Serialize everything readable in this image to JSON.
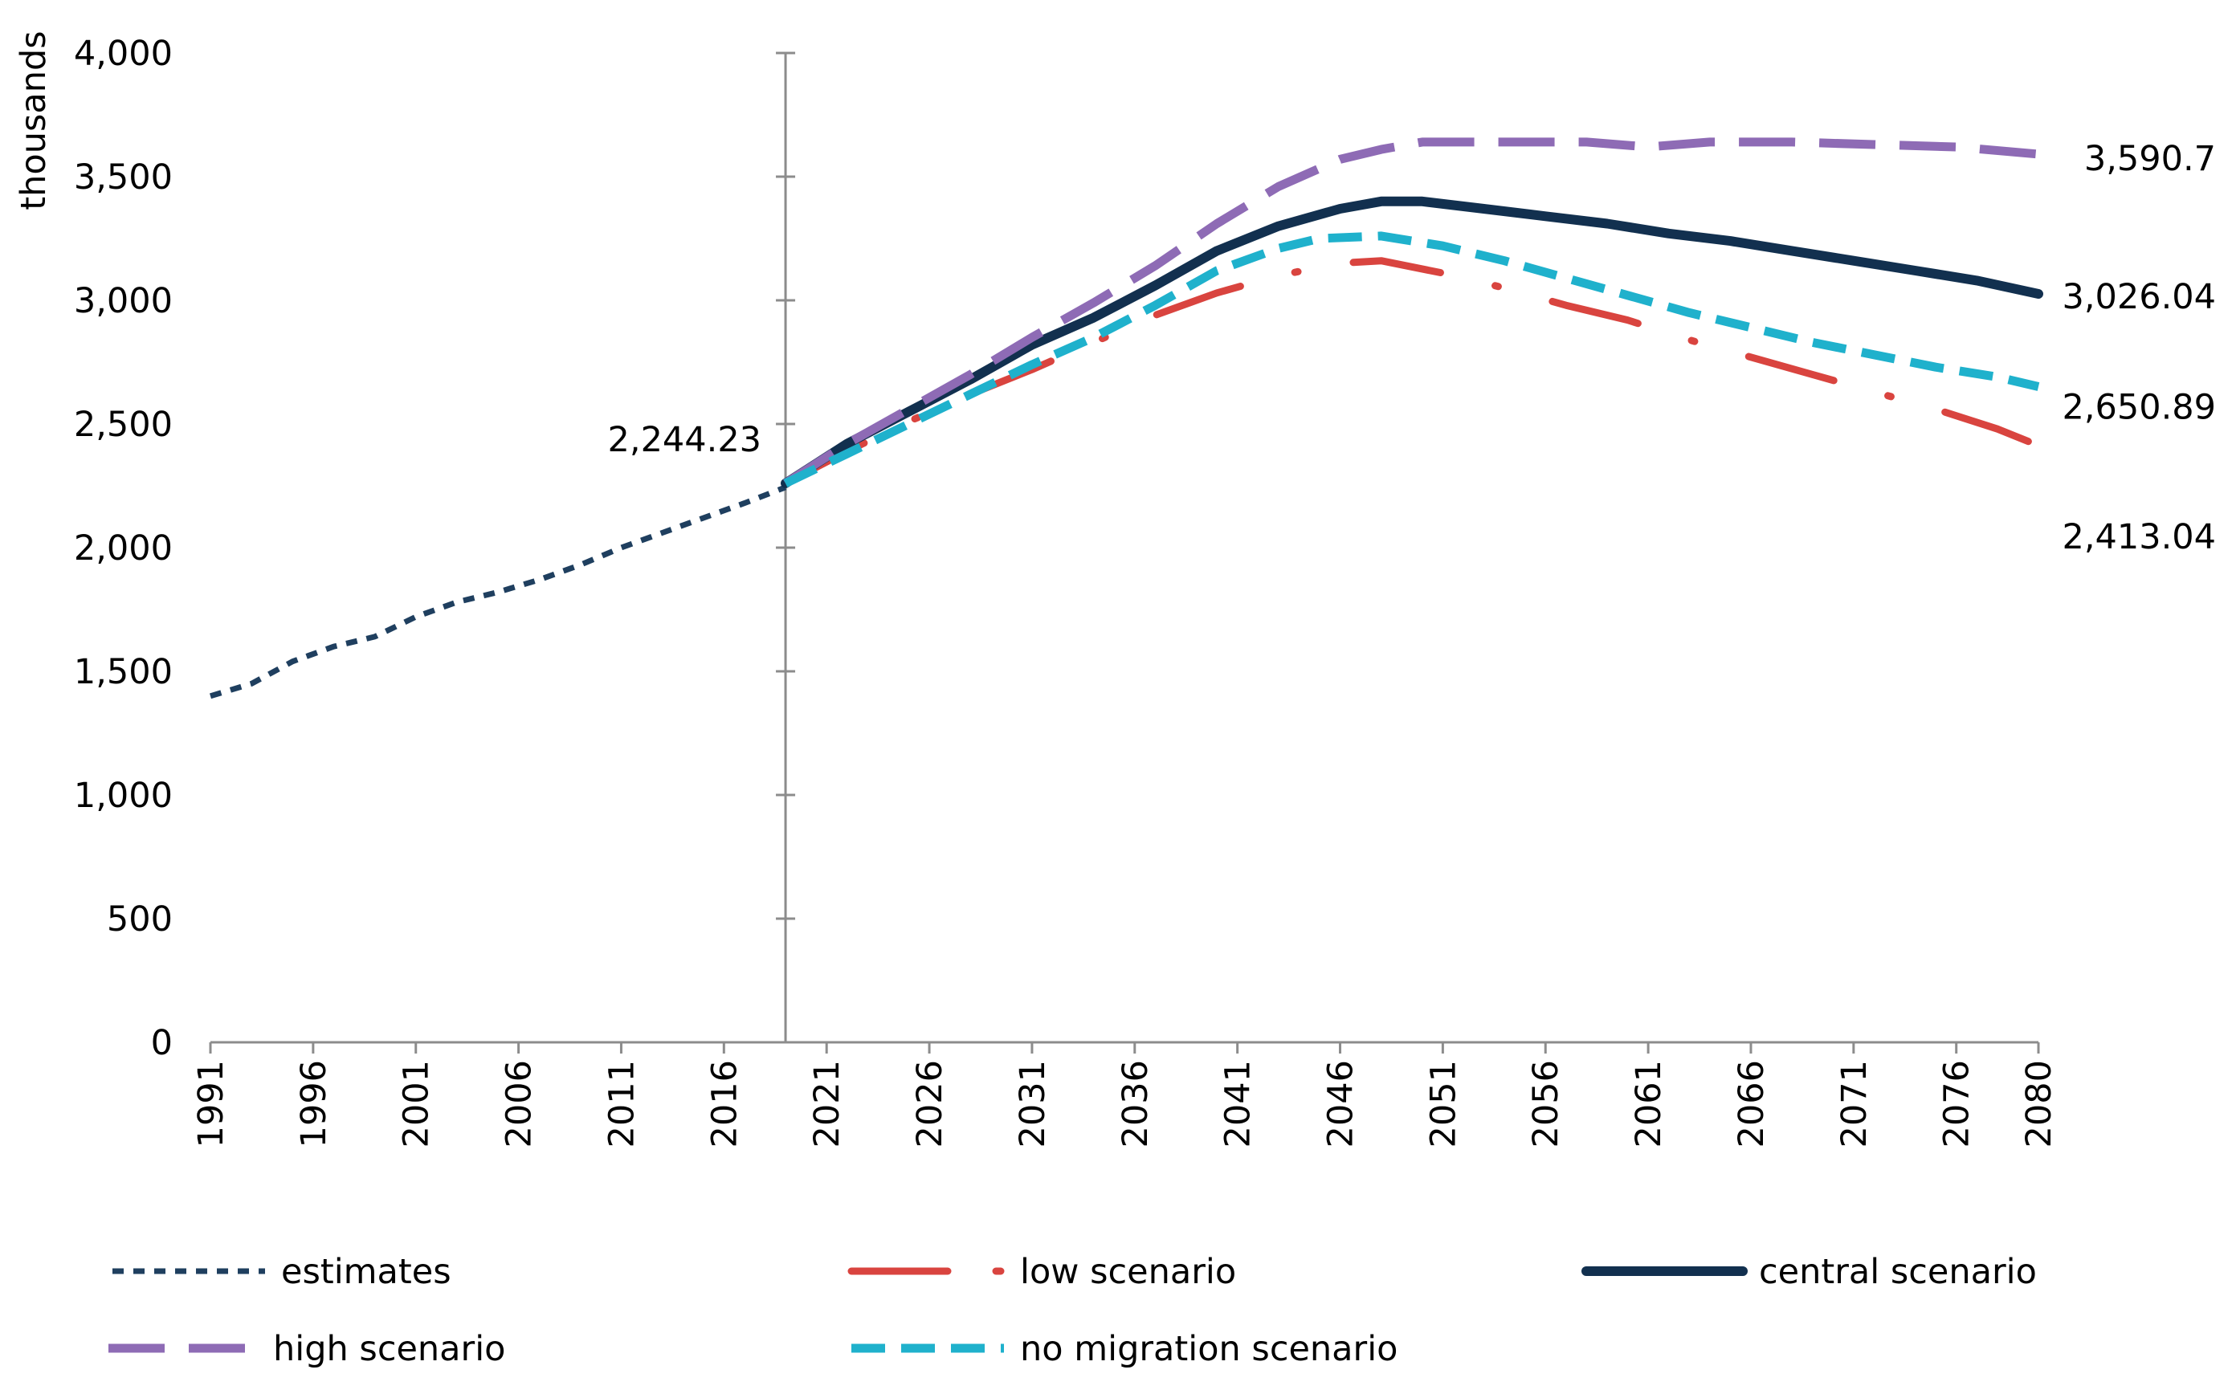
{
  "chart_data": {
    "type": "line",
    "title": "",
    "xlabel": "",
    "ylabel": "thousands",
    "xlim": [
      1991,
      2080
    ],
    "ylim": [
      0,
      4000
    ],
    "y_ticks": [
      0,
      500,
      1000,
      1500,
      2000,
      2500,
      3000,
      3500,
      4000
    ],
    "y_tick_labels": [
      "0",
      "500",
      "1,000",
      "1,500",
      "2,000",
      "2,500",
      "3,000",
      "3,500",
      "4,000"
    ],
    "x_ticks": [
      1991,
      1996,
      2001,
      2006,
      2011,
      2016,
      2021,
      2026,
      2031,
      2036,
      2041,
      2046,
      2051,
      2056,
      2061,
      2066,
      2071,
      2076,
      2080
    ],
    "x_tick_labels": [
      "1991",
      "1996",
      "2001",
      "2006",
      "2011",
      "2016",
      "2021",
      "2026",
      "2031",
      "2036",
      "2041",
      "2046",
      "2051",
      "2056",
      "2061",
      "2066",
      "2071",
      "2076",
      "2080"
    ],
    "divider_year": 2019,
    "grid": false,
    "legend_position": "bottom",
    "annotations": [
      {
        "text": "2,244.23",
        "series": "estimates",
        "year": 2019,
        "value": 2244.23
      },
      {
        "text": "3,590.7",
        "series": "high scenario",
        "year": 2080,
        "value": 3590.7
      },
      {
        "text": "3,026.04",
        "series": "central scenario",
        "year": 2080,
        "value": 3026.04
      },
      {
        "text": "2,650.89",
        "series": "no migration scenario",
        "year": 2080,
        "value": 2650.89
      },
      {
        "text": "2,413.04",
        "series": "low scenario",
        "year": 2080,
        "value": 2413.04
      }
    ],
    "series": [
      {
        "name": "estimates",
        "color": "#1f3f5f",
        "style": "short-dash",
        "x": [
          1991,
          1993,
          1995,
          1997,
          1999,
          2001,
          2003,
          2005,
          2007,
          2009,
          2011,
          2013,
          2015,
          2017,
          2019
        ],
        "y": [
          1400,
          1450,
          1540,
          1600,
          1640,
          1720,
          1780,
          1820,
          1870,
          1930,
          2000,
          2060,
          2120,
          2180,
          2244
        ]
      },
      {
        "name": "low scenario",
        "color": "#d9443f",
        "style": "dash-dot",
        "x": [
          2019,
          2022,
          2025,
          2028,
          2031,
          2034,
          2037,
          2040,
          2043,
          2046,
          2048,
          2051,
          2054,
          2057,
          2060,
          2063,
          2066,
          2069,
          2072,
          2075,
          2078,
          2080
        ],
        "y": [
          2260,
          2390,
          2510,
          2620,
          2720,
          2830,
          2940,
          3030,
          3100,
          3150,
          3160,
          3110,
          3050,
          2980,
          2920,
          2840,
          2770,
          2700,
          2630,
          2560,
          2480,
          2413
        ]
      },
      {
        "name": "central scenario",
        "color": "#12304f",
        "style": "solid",
        "x": [
          2019,
          2022,
          2025,
          2028,
          2031,
          2034,
          2037,
          2040,
          2043,
          2046,
          2048,
          2050,
          2053,
          2056,
          2059,
          2062,
          2065,
          2068,
          2071,
          2074,
          2077,
          2080
        ],
        "y": [
          2260,
          2420,
          2550,
          2680,
          2820,
          2930,
          3060,
          3200,
          3300,
          3370,
          3400,
          3400,
          3370,
          3340,
          3310,
          3270,
          3240,
          3200,
          3160,
          3120,
          3080,
          3026
        ]
      },
      {
        "name": "high scenario",
        "color": "#8e6bb5",
        "style": "long-dash",
        "x": [
          2019,
          2022,
          2025,
          2028,
          2031,
          2034,
          2037,
          2040,
          2043,
          2046,
          2048,
          2050,
          2054,
          2058,
          2061,
          2064,
          2068,
          2072,
          2076,
          2080
        ],
        "y": [
          2260,
          2420,
          2560,
          2700,
          2850,
          2990,
          3140,
          3310,
          3460,
          3570,
          3610,
          3640,
          3640,
          3640,
          3620,
          3640,
          3640,
          3630,
          3620,
          3591
        ]
      },
      {
        "name": "no migration scenario",
        "color": "#1fb1cc",
        "style": "medium-dash",
        "x": [
          2019,
          2022,
          2025,
          2028,
          2031,
          2034,
          2037,
          2040,
          2043,
          2045,
          2048,
          2051,
          2054,
          2057,
          2060,
          2063,
          2066,
          2069,
          2072,
          2075,
          2078,
          2080
        ],
        "y": [
          2260,
          2380,
          2500,
          2620,
          2740,
          2850,
          2980,
          3120,
          3210,
          3250,
          3260,
          3220,
          3160,
          3090,
          3020,
          2950,
          2890,
          2830,
          2780,
          2730,
          2690,
          2651
        ]
      }
    ]
  }
}
